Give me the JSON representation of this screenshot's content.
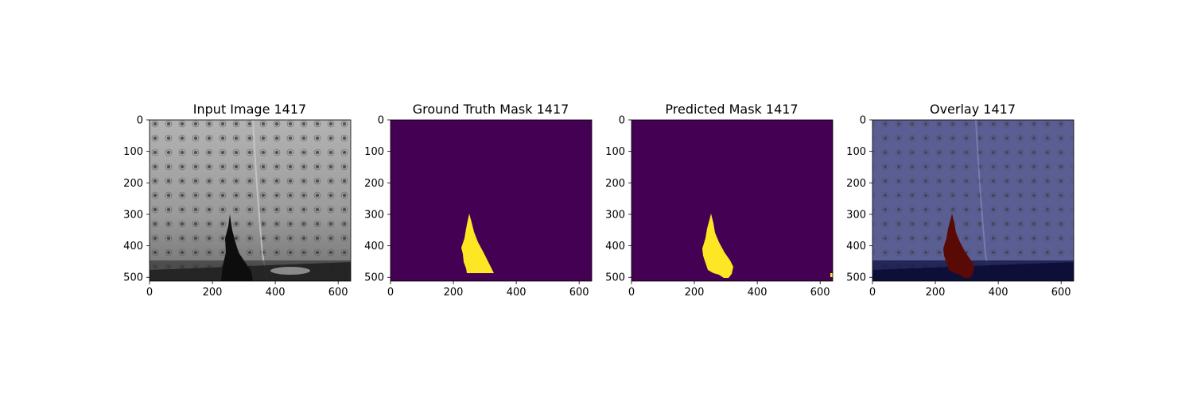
{
  "panels": [
    {
      "title": "Input Image 1417",
      "image": "grayscale photograph of a perforated panel with a dark tear near the bottom center",
      "xticks": [
        "0",
        "200",
        "400",
        "600"
      ],
      "yticks": [
        "0",
        "100",
        "200",
        "300",
        "400",
        "500"
      ]
    },
    {
      "title": "Ground Truth Mask 1417",
      "image": "binary mask, yellow tear region on dark purple background",
      "xticks": [
        "0",
        "200",
        "400",
        "600"
      ],
      "yticks": [
        "0",
        "100",
        "200",
        "300",
        "400",
        "500"
      ]
    },
    {
      "title": "Predicted Mask 1417",
      "image": "binary mask, yellow predicted tear region on dark purple background",
      "xticks": [
        "0",
        "200",
        "400",
        "600"
      ],
      "yticks": [
        "0",
        "100",
        "200",
        "300",
        "400",
        "500"
      ]
    },
    {
      "title": "Overlay 1417",
      "image": "input image tinted dark blue with dark red predicted tear region",
      "xticks": [
        "0",
        "200",
        "400",
        "600"
      ],
      "yticks": [
        "0",
        "100",
        "200",
        "300",
        "400",
        "500"
      ]
    }
  ],
  "colors": {
    "mask_background": "#440154",
    "mask_foreground": "#fde725",
    "overlay_tint": "#1a1f6e",
    "overlay_region": "#5a0a05"
  },
  "chart_data": {
    "type": "image-grid",
    "image_width": 640,
    "image_height": 512,
    "xlim": [
      0,
      640
    ],
    "ylim": [
      512,
      0
    ]
  }
}
